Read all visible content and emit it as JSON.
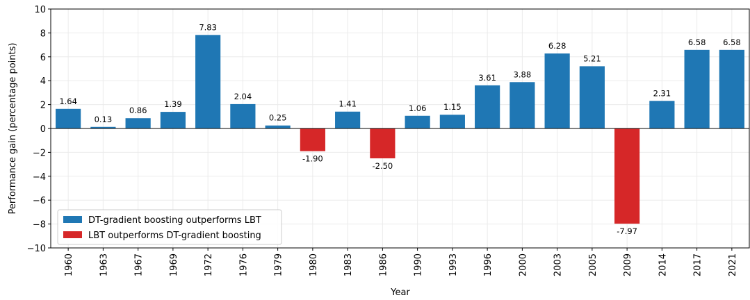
{
  "chart_data": {
    "type": "bar",
    "xlabel": "Year",
    "ylabel": "Performance gain (percentage points)",
    "categories": [
      "1960",
      "1963",
      "1967",
      "1969",
      "1972",
      "1976",
      "1979",
      "1980",
      "1983",
      "1986",
      "1990",
      "1993",
      "1996",
      "2000",
      "2003",
      "2005",
      "2009",
      "2014",
      "2017",
      "2021"
    ],
    "series": [
      {
        "name": "DT-gradient boosting outperforms LBT",
        "color": "#1f77b4",
        "values": [
          1.64,
          0.13,
          0.86,
          1.39,
          7.83,
          2.04,
          0.25,
          null,
          1.41,
          null,
          1.06,
          1.15,
          3.61,
          3.88,
          6.28,
          5.21,
          null,
          2.31,
          6.58,
          6.58
        ],
        "value_labels": [
          "1.64",
          "0.13",
          "0.86",
          "1.39",
          "7.83",
          "2.04",
          "0.25",
          null,
          "1.41",
          null,
          "1.06",
          "1.15",
          "3.61",
          "3.88",
          "6.28",
          "5.21",
          null,
          "2.31",
          "6.58",
          "6.58"
        ]
      },
      {
        "name": "LBT outperforms DT-gradient boosting",
        "color": "#d62728",
        "values": [
          null,
          null,
          null,
          null,
          null,
          null,
          null,
          -1.9,
          null,
          -2.5,
          null,
          null,
          null,
          null,
          null,
          null,
          -7.97,
          null,
          null,
          null
        ],
        "value_labels": [
          null,
          null,
          null,
          null,
          null,
          null,
          null,
          "-1.90",
          null,
          "-2.50",
          null,
          null,
          null,
          null,
          null,
          null,
          "-7.97",
          null,
          null,
          null
        ]
      }
    ],
    "ylim": [
      -10,
      10
    ],
    "yticks": [
      {
        "value": -10,
        "label": "−10"
      },
      {
        "value": -8,
        "label": "−8"
      },
      {
        "value": -6,
        "label": "−6"
      },
      {
        "value": -4,
        "label": "−4"
      },
      {
        "value": -2,
        "label": "−2"
      },
      0,
      2,
      4,
      6,
      8,
      10
    ],
    "grid": true,
    "legend": "lower left"
  }
}
